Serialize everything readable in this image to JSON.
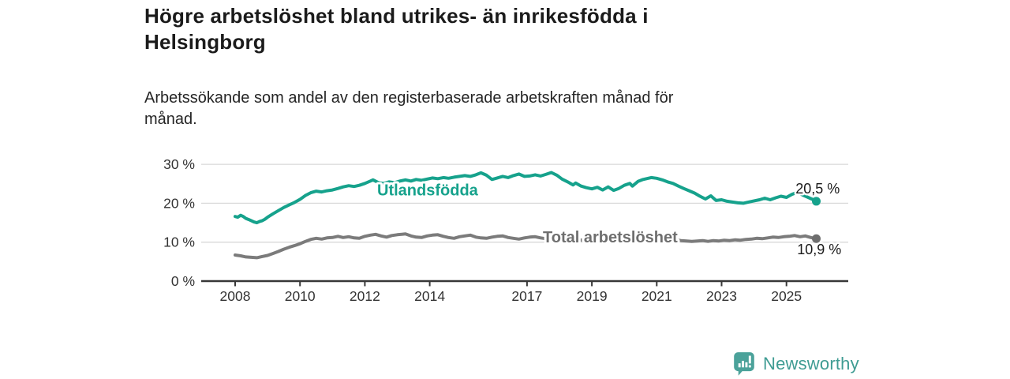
{
  "header": {
    "title_lines": [
      "Högre arbetslöshet bland utrikes- än inrikesfödda i",
      "Helsingborg"
    ],
    "subtitle_lines": [
      "Arbetssökande som andel av den registerbaserade arbetskraften månad för",
      "månad."
    ]
  },
  "branding": {
    "name": "Newsworthy",
    "icon": "newsworthy-speech-bubble-bar-chart-icon",
    "color": "#3f9c93",
    "icon_color": "#4ba29a"
  },
  "colors": {
    "accent_teal": "#16a28c",
    "series_gray": "#7b7b7b",
    "gridline": "#d9d9d9",
    "axis": "#383838",
    "tick_label": "#333333",
    "value_label": "#1a1a1a",
    "background": "#ffffff"
  },
  "chart_data": {
    "type": "line",
    "unit": "%",
    "grid": true,
    "ylim": [
      0,
      32
    ],
    "xlim": [
      2007.1,
      2026.9
    ],
    "yticks": [
      {
        "v": 0,
        "label": "0 %"
      },
      {
        "v": 10,
        "label": "10 %"
      },
      {
        "v": 20,
        "label": "20 %"
      },
      {
        "v": 30,
        "label": "30 %"
      }
    ],
    "xticks": [
      {
        "v": 2008,
        "label": "2008"
      },
      {
        "v": 2010,
        "label": "2010"
      },
      {
        "v": 2012,
        "label": "2012"
      },
      {
        "v": 2014,
        "label": "2014"
      },
      {
        "v": 2017,
        "label": "2017"
      },
      {
        "v": 2019,
        "label": "2019"
      },
      {
        "v": 2021,
        "label": "2021"
      },
      {
        "v": 2023,
        "label": "2023"
      },
      {
        "v": 2025,
        "label": "2025"
      }
    ],
    "series": [
      {
        "name": "Utlandsfödda",
        "color": "#16a28c",
        "end_value": 20.5,
        "end_value_label": "20,5 %",
        "label_pos": {
          "x": 2012.38,
          "y": 22.0
        },
        "value_label_pos": {
          "x": 2025.28,
          "y": 22.55
        },
        "points": [
          [
            2008.0,
            16.6
          ],
          [
            2008.08,
            16.4
          ],
          [
            2008.17,
            16.9
          ],
          [
            2008.25,
            16.6
          ],
          [
            2008.33,
            16.1
          ],
          [
            2008.42,
            15.8
          ],
          [
            2008.5,
            15.5
          ],
          [
            2008.58,
            15.2
          ],
          [
            2008.67,
            15.0
          ],
          [
            2008.75,
            15.3
          ],
          [
            2008.83,
            15.5
          ],
          [
            2008.92,
            15.9
          ],
          [
            2009.0,
            16.4
          ],
          [
            2009.17,
            17.3
          ],
          [
            2009.33,
            18.1
          ],
          [
            2009.5,
            18.9
          ],
          [
            2009.67,
            19.6
          ],
          [
            2009.83,
            20.2
          ],
          [
            2010.0,
            21.0
          ],
          [
            2010.17,
            22.0
          ],
          [
            2010.33,
            22.7
          ],
          [
            2010.5,
            23.1
          ],
          [
            2010.67,
            22.9
          ],
          [
            2010.83,
            23.2
          ],
          [
            2011.0,
            23.4
          ],
          [
            2011.17,
            23.8
          ],
          [
            2011.33,
            24.2
          ],
          [
            2011.5,
            24.5
          ],
          [
            2011.67,
            24.3
          ],
          [
            2011.83,
            24.6
          ],
          [
            2012.0,
            25.1
          ],
          [
            2012.17,
            25.7
          ],
          [
            2012.25,
            26.0
          ],
          [
            2012.42,
            25.3
          ],
          [
            2012.58,
            25.1
          ],
          [
            2012.75,
            25.5
          ],
          [
            2012.92,
            25.3
          ],
          [
            2013.08,
            25.7
          ],
          [
            2013.25,
            26.0
          ],
          [
            2013.42,
            25.7
          ],
          [
            2013.58,
            26.1
          ],
          [
            2013.75,
            25.9
          ],
          [
            2013.92,
            26.2
          ],
          [
            2014.08,
            26.5
          ],
          [
            2014.25,
            26.3
          ],
          [
            2014.42,
            26.6
          ],
          [
            2014.58,
            26.4
          ],
          [
            2014.75,
            26.7
          ],
          [
            2014.92,
            26.9
          ],
          [
            2015.08,
            27.1
          ],
          [
            2015.25,
            26.9
          ],
          [
            2015.42,
            27.3
          ],
          [
            2015.58,
            27.8
          ],
          [
            2015.75,
            27.2
          ],
          [
            2015.92,
            26.1
          ],
          [
            2016.08,
            26.5
          ],
          [
            2016.25,
            26.9
          ],
          [
            2016.42,
            26.6
          ],
          [
            2016.58,
            27.1
          ],
          [
            2016.75,
            27.5
          ],
          [
            2016.92,
            26.9
          ],
          [
            2017.08,
            27.0
          ],
          [
            2017.25,
            27.3
          ],
          [
            2017.42,
            27.0
          ],
          [
            2017.58,
            27.4
          ],
          [
            2017.75,
            27.9
          ],
          [
            2017.92,
            27.2
          ],
          [
            2018.08,
            26.2
          ],
          [
            2018.25,
            25.5
          ],
          [
            2018.42,
            24.7
          ],
          [
            2018.5,
            25.2
          ],
          [
            2018.67,
            24.4
          ],
          [
            2018.83,
            24.0
          ],
          [
            2019.0,
            23.7
          ],
          [
            2019.17,
            24.1
          ],
          [
            2019.33,
            23.4
          ],
          [
            2019.5,
            24.2
          ],
          [
            2019.67,
            23.3
          ],
          [
            2019.83,
            23.8
          ],
          [
            2020.0,
            24.6
          ],
          [
            2020.17,
            25.1
          ],
          [
            2020.25,
            24.4
          ],
          [
            2020.42,
            25.6
          ],
          [
            2020.58,
            26.1
          ],
          [
            2020.83,
            26.6
          ],
          [
            2021.0,
            26.4
          ],
          [
            2021.17,
            26.0
          ],
          [
            2021.33,
            25.5
          ],
          [
            2021.5,
            25.1
          ],
          [
            2021.67,
            24.4
          ],
          [
            2021.83,
            23.8
          ],
          [
            2022.0,
            23.2
          ],
          [
            2022.17,
            22.6
          ],
          [
            2022.33,
            21.8
          ],
          [
            2022.5,
            21.1
          ],
          [
            2022.67,
            21.9
          ],
          [
            2022.83,
            20.7
          ],
          [
            2023.0,
            20.9
          ],
          [
            2023.17,
            20.5
          ],
          [
            2023.33,
            20.3
          ],
          [
            2023.5,
            20.1
          ],
          [
            2023.67,
            20.0
          ],
          [
            2023.83,
            20.3
          ],
          [
            2024.0,
            20.6
          ],
          [
            2024.17,
            20.9
          ],
          [
            2024.33,
            21.3
          ],
          [
            2024.5,
            20.9
          ],
          [
            2024.67,
            21.4
          ],
          [
            2024.83,
            21.8
          ],
          [
            2025.0,
            21.5
          ],
          [
            2025.17,
            22.3
          ],
          [
            2025.33,
            22.8
          ],
          [
            2025.5,
            22.1
          ],
          [
            2025.67,
            21.5
          ],
          [
            2025.83,
            20.9
          ],
          [
            2025.92,
            20.5
          ]
        ]
      },
      {
        "name": "Total arbetslöshet",
        "color": "#7b7b7b",
        "label_color": "#6e6e6e",
        "dot_color": "#6e6e6e",
        "end_value": 10.9,
        "end_value_label": "10,9 %",
        "label_pos": {
          "x": 2017.49,
          "y": 9.95
        },
        "value_label_pos": {
          "x": 2025.33,
          "y": 6.85
        },
        "points": [
          [
            2008.0,
            6.7
          ],
          [
            2008.17,
            6.5
          ],
          [
            2008.33,
            6.2
          ],
          [
            2008.5,
            6.1
          ],
          [
            2008.67,
            6.0
          ],
          [
            2008.83,
            6.3
          ],
          [
            2009.0,
            6.6
          ],
          [
            2009.17,
            7.1
          ],
          [
            2009.33,
            7.6
          ],
          [
            2009.5,
            8.2
          ],
          [
            2009.67,
            8.7
          ],
          [
            2009.83,
            9.1
          ],
          [
            2010.0,
            9.6
          ],
          [
            2010.17,
            10.2
          ],
          [
            2010.33,
            10.7
          ],
          [
            2010.5,
            11.0
          ],
          [
            2010.67,
            10.8
          ],
          [
            2010.83,
            11.1
          ],
          [
            2011.0,
            11.2
          ],
          [
            2011.17,
            11.5
          ],
          [
            2011.33,
            11.2
          ],
          [
            2011.5,
            11.4
          ],
          [
            2011.67,
            11.1
          ],
          [
            2011.83,
            11.0
          ],
          [
            2012.0,
            11.5
          ],
          [
            2012.17,
            11.8
          ],
          [
            2012.33,
            12.0
          ],
          [
            2012.5,
            11.6
          ],
          [
            2012.67,
            11.3
          ],
          [
            2012.83,
            11.7
          ],
          [
            2013.0,
            11.9
          ],
          [
            2013.25,
            12.1
          ],
          [
            2013.42,
            11.6
          ],
          [
            2013.58,
            11.3
          ],
          [
            2013.75,
            11.2
          ],
          [
            2013.92,
            11.6
          ],
          [
            2014.08,
            11.8
          ],
          [
            2014.25,
            11.9
          ],
          [
            2014.42,
            11.5
          ],
          [
            2014.58,
            11.2
          ],
          [
            2014.75,
            11.0
          ],
          [
            2014.92,
            11.4
          ],
          [
            2015.08,
            11.6
          ],
          [
            2015.25,
            11.8
          ],
          [
            2015.42,
            11.3
          ],
          [
            2015.58,
            11.1
          ],
          [
            2015.75,
            11.0
          ],
          [
            2015.92,
            11.3
          ],
          [
            2016.08,
            11.5
          ],
          [
            2016.25,
            11.6
          ],
          [
            2016.42,
            11.2
          ],
          [
            2016.58,
            11.0
          ],
          [
            2016.75,
            10.8
          ],
          [
            2016.92,
            11.1
          ],
          [
            2017.08,
            11.3
          ],
          [
            2017.25,
            11.4
          ],
          [
            2017.42,
            11.1
          ],
          [
            2017.58,
            10.9
          ],
          [
            2017.75,
            10.8
          ],
          [
            2017.92,
            11.0
          ],
          [
            2018.08,
            11.2
          ],
          [
            2018.25,
            11.0
          ],
          [
            2018.42,
            10.8
          ],
          [
            2018.58,
            10.6
          ],
          [
            2018.75,
            10.5
          ],
          [
            2018.92,
            10.8
          ],
          [
            2019.08,
            10.9
          ],
          [
            2019.25,
            10.7
          ],
          [
            2019.42,
            10.5
          ],
          [
            2019.58,
            10.4
          ],
          [
            2019.75,
            10.6
          ],
          [
            2019.92,
            10.9
          ],
          [
            2020.08,
            11.1
          ],
          [
            2020.25,
            11.4
          ],
          [
            2020.42,
            11.6
          ],
          [
            2020.58,
            11.7
          ],
          [
            2020.75,
            11.5
          ],
          [
            2020.92,
            11.3
          ],
          [
            2021.08,
            11.2
          ],
          [
            2021.25,
            11.0
          ],
          [
            2021.42,
            10.8
          ],
          [
            2021.58,
            10.6
          ],
          [
            2021.75,
            10.4
          ],
          [
            2021.92,
            10.3
          ],
          [
            2022.08,
            10.2
          ],
          [
            2022.25,
            10.3
          ],
          [
            2022.42,
            10.4
          ],
          [
            2022.58,
            10.2
          ],
          [
            2022.75,
            10.4
          ],
          [
            2022.92,
            10.3
          ],
          [
            2023.08,
            10.5
          ],
          [
            2023.25,
            10.4
          ],
          [
            2023.42,
            10.6
          ],
          [
            2023.58,
            10.5
          ],
          [
            2023.75,
            10.7
          ],
          [
            2023.92,
            10.8
          ],
          [
            2024.08,
            11.0
          ],
          [
            2024.25,
            10.9
          ],
          [
            2024.42,
            11.1
          ],
          [
            2024.58,
            11.3
          ],
          [
            2024.75,
            11.2
          ],
          [
            2024.92,
            11.4
          ],
          [
            2025.08,
            11.5
          ],
          [
            2025.25,
            11.7
          ],
          [
            2025.42,
            11.4
          ],
          [
            2025.58,
            11.6
          ],
          [
            2025.75,
            11.2
          ],
          [
            2025.92,
            10.9
          ]
        ]
      }
    ]
  }
}
